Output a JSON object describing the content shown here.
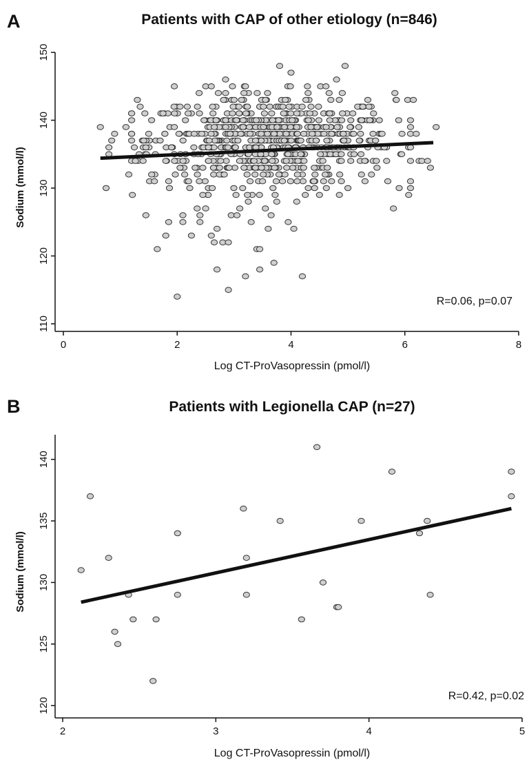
{
  "chart_data": [
    {
      "type": "scatter",
      "panel_label": "A",
      "title": "Patients with CAP of other etiology (n=846)",
      "xlabel": "Log CT-ProVasopressin  (pmol/l)",
      "ylabel": "Sodium (mmol/l)",
      "xlim": [
        0,
        8
      ],
      "ylim": [
        110,
        150
      ],
      "xticks": [
        0,
        2,
        4,
        6,
        8
      ],
      "yticks": [
        110,
        120,
        130,
        140,
        150
      ],
      "annotation": "R=0.06, p=0.07",
      "fit_line": {
        "x": [
          0.65,
          6.5
        ],
        "y": [
          134.4,
          136.7
        ]
      },
      "points": [
        {
          "x": 0.65,
          "y": 139
        },
        {
          "x": 0.75,
          "y": 130
        },
        {
          "x": 0.8,
          "y": 136
        },
        {
          "x": 0.8,
          "y": 135
        },
        {
          "x": 0.85,
          "y": 137
        },
        {
          "x": 0.9,
          "y": 138
        },
        {
          "x": 1.1,
          "y": 139
        },
        {
          "x": 1.15,
          "y": 132
        },
        {
          "x": 1.2,
          "y": 138
        },
        {
          "x": 1.3,
          "y": 143
        },
        {
          "x": 1.35,
          "y": 142
        },
        {
          "x": 1.4,
          "y": 134
        },
        {
          "x": 1.45,
          "y": 136
        },
        {
          "x": 1.45,
          "y": 126
        },
        {
          "x": 1.5,
          "y": 138
        },
        {
          "x": 1.55,
          "y": 132
        },
        {
          "x": 1.55,
          "y": 140
        },
        {
          "x": 1.6,
          "y": 131
        },
        {
          "x": 1.65,
          "y": 121
        },
        {
          "x": 1.7,
          "y": 137
        },
        {
          "x": 1.75,
          "y": 141
        },
        {
          "x": 1.8,
          "y": 134
        },
        {
          "x": 1.8,
          "y": 123
        },
        {
          "x": 1.85,
          "y": 125
        },
        {
          "x": 1.85,
          "y": 131
        },
        {
          "x": 1.9,
          "y": 136
        },
        {
          "x": 1.95,
          "y": 145
        },
        {
          "x": 1.95,
          "y": 139
        },
        {
          "x": 2.0,
          "y": 114
        },
        {
          "x": 2.05,
          "y": 133
        },
        {
          "x": 2.05,
          "y": 142
        },
        {
          "x": 2.1,
          "y": 125
        },
        {
          "x": 2.1,
          "y": 126
        },
        {
          "x": 2.15,
          "y": 135
        },
        {
          "x": 2.2,
          "y": 131
        },
        {
          "x": 2.25,
          "y": 123
        },
        {
          "x": 2.3,
          "y": 138
        },
        {
          "x": 2.35,
          "y": 127
        },
        {
          "x": 2.4,
          "y": 125
        },
        {
          "x": 2.4,
          "y": 126
        },
        {
          "x": 2.45,
          "y": 129
        },
        {
          "x": 2.5,
          "y": 145
        },
        {
          "x": 2.5,
          "y": 127
        },
        {
          "x": 2.55,
          "y": 134
        },
        {
          "x": 2.6,
          "y": 145
        },
        {
          "x": 2.6,
          "y": 123
        },
        {
          "x": 2.65,
          "y": 122
        },
        {
          "x": 2.7,
          "y": 118
        },
        {
          "x": 2.7,
          "y": 124
        },
        {
          "x": 2.8,
          "y": 122
        },
        {
          "x": 2.85,
          "y": 144
        },
        {
          "x": 2.85,
          "y": 146
        },
        {
          "x": 2.9,
          "y": 115
        },
        {
          "x": 2.9,
          "y": 122
        },
        {
          "x": 2.95,
          "y": 126
        },
        {
          "x": 3.0,
          "y": 143
        },
        {
          "x": 3.05,
          "y": 126
        },
        {
          "x": 3.1,
          "y": 127
        },
        {
          "x": 3.15,
          "y": 130
        },
        {
          "x": 3.2,
          "y": 145
        },
        {
          "x": 3.2,
          "y": 117
        },
        {
          "x": 3.25,
          "y": 128
        },
        {
          "x": 3.3,
          "y": 125
        },
        {
          "x": 3.35,
          "y": 134
        },
        {
          "x": 3.4,
          "y": 121
        },
        {
          "x": 3.45,
          "y": 118
        },
        {
          "x": 3.45,
          "y": 121
        },
        {
          "x": 3.5,
          "y": 131
        },
        {
          "x": 3.55,
          "y": 127
        },
        {
          "x": 3.6,
          "y": 124
        },
        {
          "x": 3.65,
          "y": 126
        },
        {
          "x": 3.7,
          "y": 119
        },
        {
          "x": 3.75,
          "y": 128
        },
        {
          "x": 3.8,
          "y": 148
        },
        {
          "x": 3.85,
          "y": 131
        },
        {
          "x": 3.9,
          "y": 143
        },
        {
          "x": 3.95,
          "y": 125
        },
        {
          "x": 4.0,
          "y": 147
        },
        {
          "x": 4.05,
          "y": 124
        },
        {
          "x": 4.1,
          "y": 128
        },
        {
          "x": 4.2,
          "y": 117
        },
        {
          "x": 4.25,
          "y": 129
        },
        {
          "x": 4.3,
          "y": 144
        },
        {
          "x": 4.35,
          "y": 139
        },
        {
          "x": 4.4,
          "y": 131
        },
        {
          "x": 4.5,
          "y": 129
        },
        {
          "x": 4.6,
          "y": 132
        },
        {
          "x": 4.7,
          "y": 143
        },
        {
          "x": 4.8,
          "y": 146
        },
        {
          "x": 4.85,
          "y": 129
        },
        {
          "x": 4.9,
          "y": 144
        },
        {
          "x": 4.95,
          "y": 148
        },
        {
          "x": 5.0,
          "y": 130
        },
        {
          "x": 5.05,
          "y": 140
        },
        {
          "x": 5.1,
          "y": 136
        },
        {
          "x": 5.2,
          "y": 137
        },
        {
          "x": 5.3,
          "y": 131
        },
        {
          "x": 5.35,
          "y": 143
        },
        {
          "x": 5.45,
          "y": 141
        },
        {
          "x": 5.5,
          "y": 134
        },
        {
          "x": 5.6,
          "y": 138
        },
        {
          "x": 5.7,
          "y": 131
        },
        {
          "x": 5.8,
          "y": 127
        },
        {
          "x": 5.85,
          "y": 143
        },
        {
          "x": 5.9,
          "y": 130
        },
        {
          "x": 5.95,
          "y": 138
        },
        {
          "x": 6.05,
          "y": 143
        },
        {
          "x": 6.1,
          "y": 134
        },
        {
          "x": 6.15,
          "y": 143
        },
        {
          "x": 6.2,
          "y": 138
        },
        {
          "x": 6.25,
          "y": 134
        },
        {
          "x": 6.3,
          "y": 134
        },
        {
          "x": 6.4,
          "y": 134
        },
        {
          "x": 6.45,
          "y": 133
        },
        {
          "x": 6.55,
          "y": 139
        }
      ],
      "dense_cloud": {
        "x_range": [
          1.5,
          5.8
        ],
        "y_range": [
          131,
          143
        ],
        "count": 700
      }
    },
    {
      "type": "scatter",
      "panel_label": "B",
      "title": "Patients with Legionella CAP (n=27)",
      "xlabel": "Log CT-ProVasopressin  (pmol/l)",
      "ylabel": "Sodium (mmol/l)",
      "xlim": [
        2,
        5
      ],
      "ylim": [
        119,
        142
      ],
      "xticks": [
        2,
        3,
        4,
        5
      ],
      "yticks": [
        120,
        125,
        130,
        135,
        140
      ],
      "annotation": "R=0.42, p=0.02",
      "fit_line": {
        "x": [
          2.12,
          4.93
        ],
        "y": [
          128.4,
          136.0
        ]
      },
      "points": [
        {
          "x": 2.12,
          "y": 131
        },
        {
          "x": 2.18,
          "y": 137
        },
        {
          "x": 2.3,
          "y": 132
        },
        {
          "x": 2.34,
          "y": 126
        },
        {
          "x": 2.36,
          "y": 125
        },
        {
          "x": 2.43,
          "y": 129
        },
        {
          "x": 2.46,
          "y": 127
        },
        {
          "x": 2.59,
          "y": 122
        },
        {
          "x": 2.61,
          "y": 127
        },
        {
          "x": 2.75,
          "y": 134
        },
        {
          "x": 2.75,
          "y": 129
        },
        {
          "x": 3.18,
          "y": 136
        },
        {
          "x": 3.2,
          "y": 132
        },
        {
          "x": 3.2,
          "y": 129
        },
        {
          "x": 3.42,
          "y": 135
        },
        {
          "x": 3.56,
          "y": 127
        },
        {
          "x": 3.66,
          "y": 141
        },
        {
          "x": 3.7,
          "y": 130
        },
        {
          "x": 3.79,
          "y": 128
        },
        {
          "x": 3.8,
          "y": 128
        },
        {
          "x": 3.95,
          "y": 135
        },
        {
          "x": 4.15,
          "y": 139
        },
        {
          "x": 4.33,
          "y": 134
        },
        {
          "x": 4.38,
          "y": 135
        },
        {
          "x": 4.4,
          "y": 129
        },
        {
          "x": 4.93,
          "y": 139
        },
        {
          "x": 4.93,
          "y": 137
        }
      ]
    }
  ]
}
